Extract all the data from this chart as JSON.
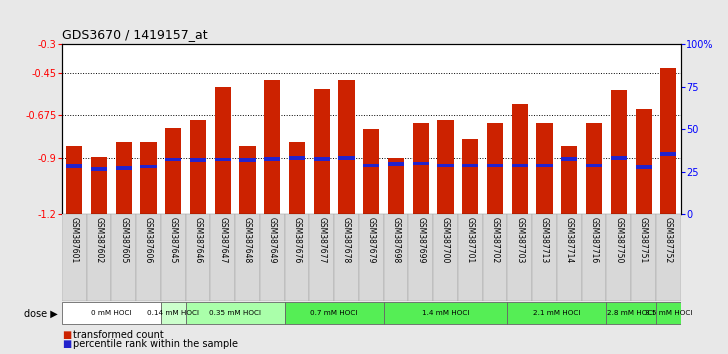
{
  "title": "GDS3670 / 1419157_at",
  "samples": [
    "GSM387601",
    "GSM387602",
    "GSM387605",
    "GSM387606",
    "GSM387645",
    "GSM387646",
    "GSM387647",
    "GSM387648",
    "GSM387649",
    "GSM387676",
    "GSM387677",
    "GSM387678",
    "GSM387679",
    "GSM387698",
    "GSM387699",
    "GSM387700",
    "GSM387701",
    "GSM387702",
    "GSM387703",
    "GSM387713",
    "GSM387714",
    "GSM387716",
    "GSM387750",
    "GSM387751",
    "GSM387752"
  ],
  "red_values": [
    -0.84,
    -0.895,
    -0.82,
    -0.82,
    -0.745,
    -0.7,
    -0.525,
    -0.84,
    -0.49,
    -0.82,
    -0.535,
    -0.49,
    -0.75,
    -0.9,
    -0.715,
    -0.7,
    -0.8,
    -0.715,
    -0.615,
    -0.715,
    -0.84,
    -0.715,
    -0.54,
    -0.645,
    -0.425
  ],
  "blue_values": [
    -0.945,
    -0.96,
    -0.955,
    -0.948,
    -0.91,
    -0.912,
    -0.91,
    -0.913,
    -0.908,
    -0.903,
    -0.907,
    -0.903,
    -0.942,
    -0.933,
    -0.932,
    -0.942,
    -0.942,
    -0.942,
    -0.942,
    -0.942,
    -0.907,
    -0.942,
    -0.903,
    -0.952,
    -0.882
  ],
  "dose_groups": [
    {
      "label": "0 mM HOCl",
      "start": 0,
      "end": 4,
      "color": "#ffffff"
    },
    {
      "label": "0.14 mM HOCl",
      "start": 4,
      "end": 5,
      "color": "#ccffcc"
    },
    {
      "label": "0.35 mM HOCl",
      "start": 5,
      "end": 9,
      "color": "#aaffaa"
    },
    {
      "label": "0.7 mM HOCl",
      "start": 9,
      "end": 13,
      "color": "#55ee55"
    },
    {
      "label": "1.4 mM HOCl",
      "start": 13,
      "end": 18,
      "color": "#55ee55"
    },
    {
      "label": "2.1 mM HOCl",
      "start": 18,
      "end": 22,
      "color": "#55ee55"
    },
    {
      "label": "2.8 mM HOCl",
      "start": 22,
      "end": 24,
      "color": "#55ee55"
    },
    {
      "label": "3.5 mM HOCl",
      "start": 24,
      "end": 25,
      "color": "#55ee55"
    }
  ],
  "ylim_left": [
    -1.2,
    -0.3
  ],
  "ylim_right": [
    0,
    100
  ],
  "yticks_left": [
    -1.2,
    -0.9,
    -0.675,
    -0.45,
    -0.3
  ],
  "ytick_labels_left": [
    "-1.2",
    "-0.9",
    "-0.675",
    "-0.45",
    "-0.3"
  ],
  "yticks_right": [
    0,
    25,
    50,
    75,
    100
  ],
  "ytick_labels_right": [
    "0",
    "25",
    "50",
    "75",
    "100%"
  ],
  "hlines": [
    -0.9,
    -0.675,
    -0.45
  ],
  "bar_color": "#cc2200",
  "blue_color": "#2222cc",
  "bg_color": "#e8e8e8",
  "plot_bg": "#ffffff",
  "legend_red": "transformed count",
  "legend_blue": "percentile rank within the sample",
  "dose_label": "dose"
}
